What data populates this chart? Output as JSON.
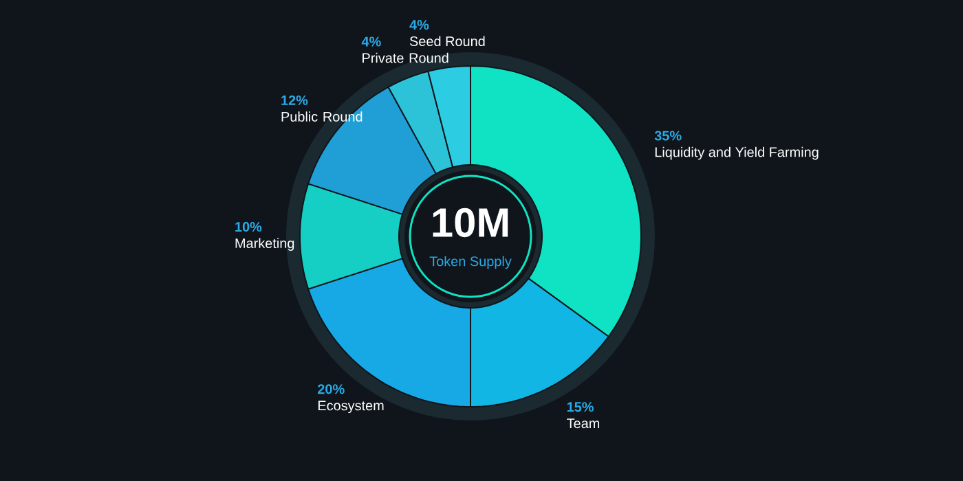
{
  "chart_data": {
    "type": "donut",
    "categories": [
      "Liquidity and Yield Farming",
      "Team",
      "Ecosystem",
      "Marketing",
      "Public Round",
      "Private Round",
      "Seed Round"
    ],
    "values": [
      35,
      15,
      20,
      10,
      12,
      4,
      4
    ],
    "colors": [
      "#0fe3c4",
      "#12b6e4",
      "#17a9e6",
      "#15cfc4",
      "#1f9fd6",
      "#2cc3d8",
      "#2ccde2"
    ],
    "value_labels": [
      "35%",
      "15%",
      "20%",
      "10%",
      "12%",
      "4%",
      "4%"
    ],
    "annotations": [
      "10M",
      "Token Supply"
    ]
  }
}
